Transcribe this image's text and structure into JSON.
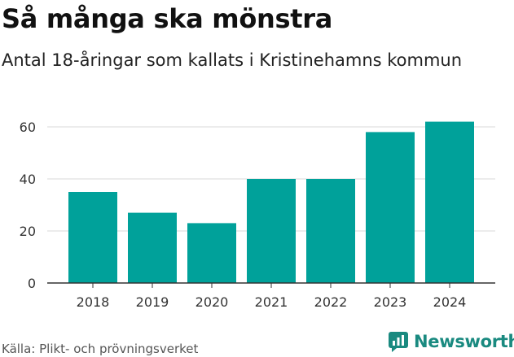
{
  "chart_data": {
    "type": "bar",
    "title": "Så många ska mönstra",
    "subtitle": "Antal 18-åringar som kallats i Kristinehamns kommun",
    "categories": [
      "2018",
      "2019",
      "2020",
      "2021",
      "2022",
      "2023",
      "2024"
    ],
    "values": [
      35,
      27,
      23,
      40,
      40,
      58,
      62
    ],
    "yticks": [
      0,
      20,
      40,
      60
    ],
    "ylim": [
      0,
      65
    ],
    "grid": true,
    "bar_color": "#00a19a",
    "xlabel": "",
    "ylabel": ""
  },
  "source": "Källa: Plikt- och prövningsverket",
  "brand": {
    "name": "Newsworthy",
    "icon": "bar-chart-logo-icon",
    "color": "#1a8a80"
  }
}
